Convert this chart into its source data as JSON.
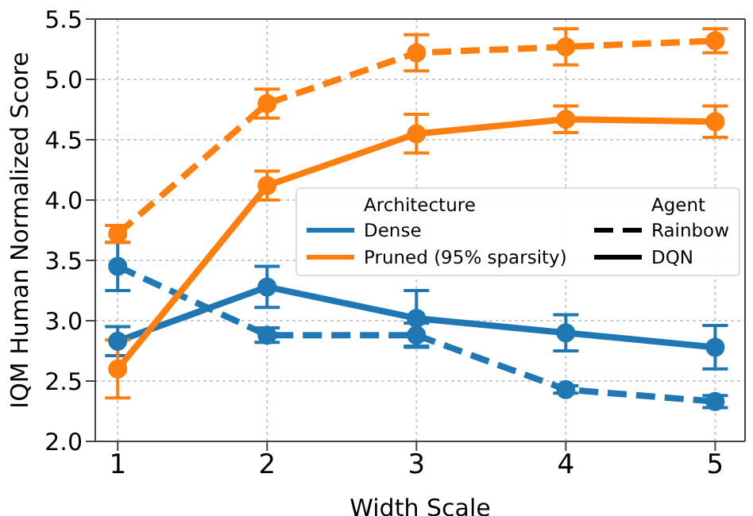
{
  "chart_data": {
    "type": "line",
    "xlabel": "Width Scale",
    "ylabel": "IQM Human Normalized Score",
    "x": [
      1,
      2,
      3,
      4,
      5
    ],
    "xlim": [
      0.85,
      5.2
    ],
    "xticks": [
      1,
      2,
      3,
      4,
      5
    ],
    "ylim": [
      2.0,
      5.5
    ],
    "yticks": [
      {
        "value": 2.0,
        "label": "2.0"
      },
      {
        "value": 2.5,
        "label": "2.5"
      },
      {
        "value": 3.0,
        "label": "3.0"
      },
      {
        "value": 3.5,
        "label": "3.5"
      },
      {
        "value": 4.0,
        "label": "4.0"
      },
      {
        "value": 4.5,
        "label": "4.5"
      },
      {
        "value": 5.0,
        "label": "5.0"
      },
      {
        "value": 5.5,
        "label": "5.5"
      }
    ],
    "grid": true,
    "marker": "circle",
    "legend": "right",
    "legend_title": [
      "Architecture",
      "Agent"
    ],
    "annotations": [
      "Rainbow",
      "DQN"
    ],
    "series": [
      {
        "name": "Dense",
        "color": "#1f77b4",
        "line_style": "dashed",
        "values": [
          3.45,
          2.88,
          2.88,
          2.43,
          2.33
        ],
        "errors": [
          0.2,
          0.06,
          0.1,
          0.03,
          0.05
        ]
      },
      {
        "color": "#1f77b4",
        "line_style": "solid",
        "values": [
          2.83,
          3.28,
          3.02,
          2.9,
          2.78
        ],
        "errors": [
          0.12,
          0.17,
          0.23,
          0.15,
          0.18
        ]
      },
      {
        "name": "Pruned (95% sparsity)",
        "color": "#ff7f0e",
        "line_style": "dashed",
        "values": [
          3.72,
          4.8,
          5.22,
          5.27,
          5.32
        ],
        "errors": [
          0.07,
          0.12,
          0.15,
          0.15,
          0.1
        ]
      },
      {
        "color": "#ff7f0e",
        "line_style": "solid",
        "values": [
          2.6,
          4.12,
          4.55,
          4.67,
          4.65
        ],
        "errors": [
          0.24,
          0.12,
          0.16,
          0.11,
          0.13
        ]
      }
    ]
  }
}
